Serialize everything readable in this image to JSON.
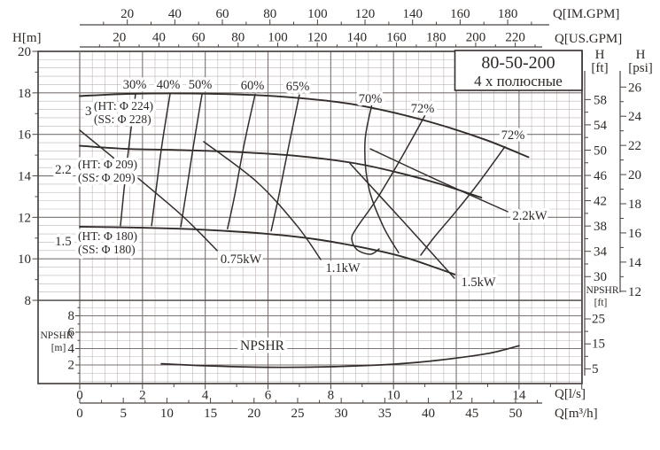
{
  "title": {
    "model": "80-50-200",
    "poles": "4 х полюсные"
  },
  "axis_headers": {
    "im_gpm": "Q[IM.GPM]",
    "us_gpm": "Q[US.GPM]",
    "h_m": "H[m]",
    "h_ft_1": "H",
    "h_ft_2": "[ft]",
    "h_psi_1": "H",
    "h_psi_2": "[psi]",
    "npshr_ft_1": "NPSHR",
    "npshr_ft_2": "[ft]",
    "npshr_m_1": "NPSHR",
    "npshr_m_2": "[m]",
    "q_ls": "Q[l/s]",
    "q_m3h": "Q[m³/h]"
  },
  "impeller_labels": [
    {
      "power": "3",
      "ht": "(HT: Φ 224)",
      "ss": "(SS: Φ 228)"
    },
    {
      "power": "2.2",
      "ht": "(HT: Φ 209)",
      "ss": "(SS: Φ 209)"
    },
    {
      "power": "1.5",
      "ht": "(HT: Φ 180)",
      "ss": "(SS: Φ 180)"
    }
  ],
  "efficiency_labels": [
    "30%",
    "40%",
    "50%",
    "60%",
    "65%",
    "70%",
    "72%",
    "72%"
  ],
  "power_labels": [
    "0.75kW",
    "1.1kW",
    "1.5kW",
    "2.2kW"
  ],
  "npshr_curve_label": "NPSHR",
  "colors": {
    "grid_minor": "#bdb5b3",
    "grid_major": "#7a7270",
    "frame": "#4a4442",
    "curve": "#332d2b",
    "text": "#2e2926",
    "background": "#ffffff"
  },
  "chart_data": {
    "type": "line",
    "q_units": "l/s",
    "h_units": "m",
    "x_range_ls": [
      0,
      16
    ],
    "h_range_m": [
      8,
      20
    ],
    "npshr_range_m": [
      0,
      10
    ],
    "x_axes": [
      {
        "name": "Q_IM_GPM",
        "ticks": [
          20,
          40,
          60,
          80,
          100,
          120,
          140,
          160,
          180
        ]
      },
      {
        "name": "Q_US_GPM",
        "ticks": [
          20,
          40,
          60,
          80,
          100,
          120,
          140,
          160,
          180,
          200,
          220
        ]
      },
      {
        "name": "Q_l_s",
        "ticks": [
          0,
          2,
          4,
          6,
          8,
          10,
          12,
          14
        ]
      },
      {
        "name": "Q_m3_h",
        "ticks": [
          0,
          5,
          10,
          15,
          20,
          25,
          30,
          35,
          40,
          45,
          50
        ]
      }
    ],
    "y_axes": [
      {
        "name": "H_m",
        "ticks": [
          8,
          10,
          12,
          14,
          16,
          18,
          20
        ]
      },
      {
        "name": "H_ft",
        "ticks": [
          30,
          34,
          38,
          42,
          46,
          50,
          54,
          58
        ]
      },
      {
        "name": "H_psi",
        "ticks": [
          12,
          14,
          16,
          18,
          20,
          22,
          24,
          26
        ]
      },
      {
        "name": "NPSHR_m",
        "ticks": [
          2,
          4,
          6,
          8
        ]
      },
      {
        "name": "NPSHR_ft",
        "ticks": [
          5,
          15,
          25
        ]
      }
    ],
    "pump_curves": [
      {
        "name": "impeller-224",
        "motor_kw": "3",
        "impeller": "HT Φ224 / SS Φ228",
        "points": [
          [
            0,
            17.85
          ],
          [
            1.5,
            17.95
          ],
          [
            3.5,
            17.97
          ],
          [
            5.5,
            17.9
          ],
          [
            7,
            17.75
          ],
          [
            8.5,
            17.5
          ],
          [
            10,
            17.05
          ],
          [
            11.5,
            16.45
          ],
          [
            13,
            15.7
          ],
          [
            14.3,
            14.9
          ]
        ]
      },
      {
        "name": "impeller-209",
        "motor_kw": "2.2",
        "impeller": "HT Φ209 / SS Φ209",
        "points": [
          [
            0,
            15.45
          ],
          [
            1.5,
            15.3
          ],
          [
            3,
            15.25
          ],
          [
            5,
            15.15
          ],
          [
            7,
            14.95
          ],
          [
            8.8,
            14.6
          ],
          [
            10.3,
            14.1
          ],
          [
            11.5,
            13.6
          ],
          [
            12.8,
            12.95
          ]
        ]
      },
      {
        "name": "impeller-180",
        "motor_kw": "1.5",
        "impeller": "HT Φ180 / SS Φ180",
        "points": [
          [
            0,
            11.55
          ],
          [
            2,
            11.5
          ],
          [
            4,
            11.4
          ],
          [
            6,
            11.2
          ],
          [
            7.5,
            10.95
          ],
          [
            9,
            10.55
          ],
          [
            10.3,
            10.1
          ],
          [
            11.3,
            9.6
          ],
          [
            11.95,
            9.25
          ]
        ]
      }
    ],
    "efficiency_lines": [
      {
        "label": "30%",
        "points": [
          [
            1.78,
            17.95
          ],
          [
            1.58,
            15.6
          ],
          [
            1.41,
            13.3
          ],
          [
            1.3,
            11.6
          ]
        ]
      },
      {
        "label": "40%",
        "points": [
          [
            2.88,
            17.95
          ],
          [
            2.63,
            15.6
          ],
          [
            2.43,
            13.3
          ],
          [
            2.29,
            11.6
          ]
        ]
      },
      {
        "label": "50%",
        "points": [
          [
            3.9,
            17.95
          ],
          [
            3.64,
            15.6
          ],
          [
            3.39,
            13.17
          ],
          [
            3.22,
            11.55
          ]
        ]
      },
      {
        "label": "60%",
        "points": [
          [
            5.59,
            17.93
          ],
          [
            5.25,
            15.6
          ],
          [
            4.94,
            13.08
          ],
          [
            4.71,
            11.45
          ]
        ]
      },
      {
        "label": "65%",
        "points": [
          [
            7.0,
            17.9
          ],
          [
            6.66,
            15.43
          ],
          [
            6.32,
            12.87
          ],
          [
            6.1,
            11.35
          ]
        ]
      },
      {
        "label": "70%",
        "points": [
          [
            9.32,
            17.5
          ],
          [
            9.09,
            15.64
          ],
          [
            9.2,
            13.5
          ],
          [
            9.66,
            11.6
          ],
          [
            10.16,
            10.3
          ]
        ]
      },
      {
        "label": "72%",
        "points": [
          [
            11.07,
            17.1
          ],
          [
            10.3,
            15.0
          ],
          [
            9.46,
            12.87
          ],
          [
            8.81,
            11.46
          ],
          [
            8.67,
            10.95
          ],
          [
            8.84,
            10.44
          ],
          [
            9.26,
            10.22
          ],
          [
            9.54,
            10.48
          ]
        ]
      },
      {
        "label": "72%",
        "points": [
          [
            13.55,
            15.4
          ],
          [
            12.7,
            13.64
          ],
          [
            12.0,
            12.3
          ],
          [
            11.29,
            11.03
          ],
          [
            10.87,
            10.18
          ]
        ]
      }
    ],
    "power_lines": [
      {
        "label": "0.75kW",
        "points": [
          [
            0,
            16.2
          ],
          [
            1.69,
            14.1
          ],
          [
            3.25,
            12.1
          ],
          [
            4.38,
            10.4
          ]
        ]
      },
      {
        "label": "1.1kW",
        "points": [
          [
            3.95,
            15.65
          ],
          [
            5.65,
            13.7
          ],
          [
            6.92,
            11.6
          ],
          [
            7.68,
            9.97
          ]
        ]
      },
      {
        "label": "1.5kW",
        "points": [
          [
            8.61,
            14.6
          ],
          [
            10.31,
            11.8
          ],
          [
            11.94,
            9.07
          ]
        ]
      },
      {
        "label": "2.2kW",
        "points": [
          [
            9.26,
            15.3
          ],
          [
            11.43,
            13.77
          ],
          [
            13.64,
            12.27
          ]
        ]
      }
    ],
    "npshr_curve": {
      "units": "m",
      "points": [
        [
          2.6,
          2.15
        ],
        [
          4,
          1.9
        ],
        [
          6,
          1.72
        ],
        [
          8,
          1.78
        ],
        [
          10,
          2.1
        ],
        [
          11.5,
          2.6
        ],
        [
          13,
          3.4
        ],
        [
          14,
          4.35
        ]
      ]
    }
  }
}
